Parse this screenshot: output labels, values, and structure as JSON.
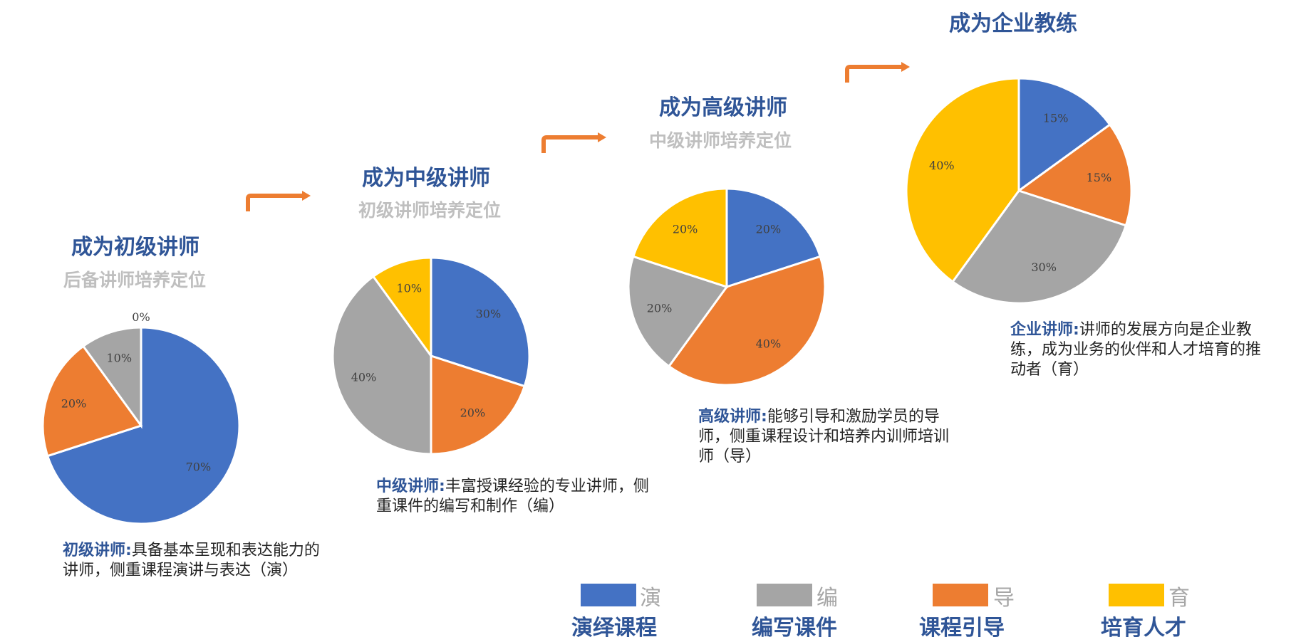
{
  "colors": {
    "yan": "#4472C4",
    "bian": "#A5A5A5",
    "dao": "#ED7D31",
    "yu": "#FFC000",
    "title": "#2F5597",
    "subtitle": "#BFBFBF",
    "arrow": "#ED7D31"
  },
  "stages": [
    {
      "title": "成为初级讲师",
      "subtitle": "后备讲师培养定位",
      "desc_lead": "初级讲师:",
      "desc_text": "具备基本呈现和表达能力的讲师，侧重课程演讲与表达（演）"
    },
    {
      "title": "成为中级讲师",
      "subtitle": "初级讲师培养定位",
      "desc_lead": "中级讲师:",
      "desc_text": "丰富授课经验的专业讲师，侧重课件的编写和制作（编）"
    },
    {
      "title": "成为高级讲师",
      "subtitle": "中级讲师培养定位",
      "desc_lead": "高级讲师:",
      "desc_text": "能够引导和激励学员的导师，侧重课程设计和培养内训师培训师（导）"
    },
    {
      "title": "成为企业教练",
      "subtitle": "",
      "desc_lead": "企业讲师:",
      "desc_text": "讲师的发展方向是企业教练，成为业务的伙伴和人才培育的推动者（育）"
    }
  ],
  "legend": [
    {
      "char": "演",
      "label": "演绎课程",
      "color": "#4472C4"
    },
    {
      "char": "编",
      "label": "编写课件",
      "color": "#A5A5A5"
    },
    {
      "char": "导",
      "label": "课程引导",
      "color": "#ED7D31"
    },
    {
      "char": "育",
      "label": "培育人才",
      "color": "#FFC000"
    }
  ],
  "chart_data": [
    {
      "type": "pie",
      "title": "成为初级讲师",
      "series": [
        {
          "name": "演",
          "value": 70,
          "label": "70%",
          "color": "#4472C4"
        },
        {
          "name": "导",
          "value": 20,
          "label": "20%",
          "color": "#ED7D31"
        },
        {
          "name": "编",
          "value": 10,
          "label": "10%",
          "color": "#A5A5A5"
        },
        {
          "name": "育",
          "value": 0,
          "label": "0%",
          "color": "#FFC000"
        }
      ]
    },
    {
      "type": "pie",
      "title": "成为中级讲师",
      "series": [
        {
          "name": "演",
          "value": 30,
          "label": "30%",
          "color": "#4472C4"
        },
        {
          "name": "导",
          "value": 20,
          "label": "20%",
          "color": "#ED7D31"
        },
        {
          "name": "编",
          "value": 40,
          "label": "40%",
          "color": "#A5A5A5"
        },
        {
          "name": "育",
          "value": 10,
          "label": "10%",
          "color": "#FFC000"
        }
      ]
    },
    {
      "type": "pie",
      "title": "成为高级讲师",
      "series": [
        {
          "name": "演",
          "value": 20,
          "label": "20%",
          "color": "#4472C4"
        },
        {
          "name": "导",
          "value": 40,
          "label": "40%",
          "color": "#ED7D31"
        },
        {
          "name": "编",
          "value": 20,
          "label": "20%",
          "color": "#A5A5A5"
        },
        {
          "name": "育",
          "value": 20,
          "label": "20%",
          "color": "#FFC000"
        }
      ]
    },
    {
      "type": "pie",
      "title": "成为企业教练",
      "series": [
        {
          "name": "演",
          "value": 15,
          "label": "15%",
          "color": "#4472C4"
        },
        {
          "name": "导",
          "value": 15,
          "label": "15%",
          "color": "#ED7D31"
        },
        {
          "name": "编",
          "value": 30,
          "label": "30%",
          "color": "#A5A5A5"
        },
        {
          "name": "育",
          "value": 40,
          "label": "40%",
          "color": "#FFC000"
        }
      ]
    }
  ]
}
